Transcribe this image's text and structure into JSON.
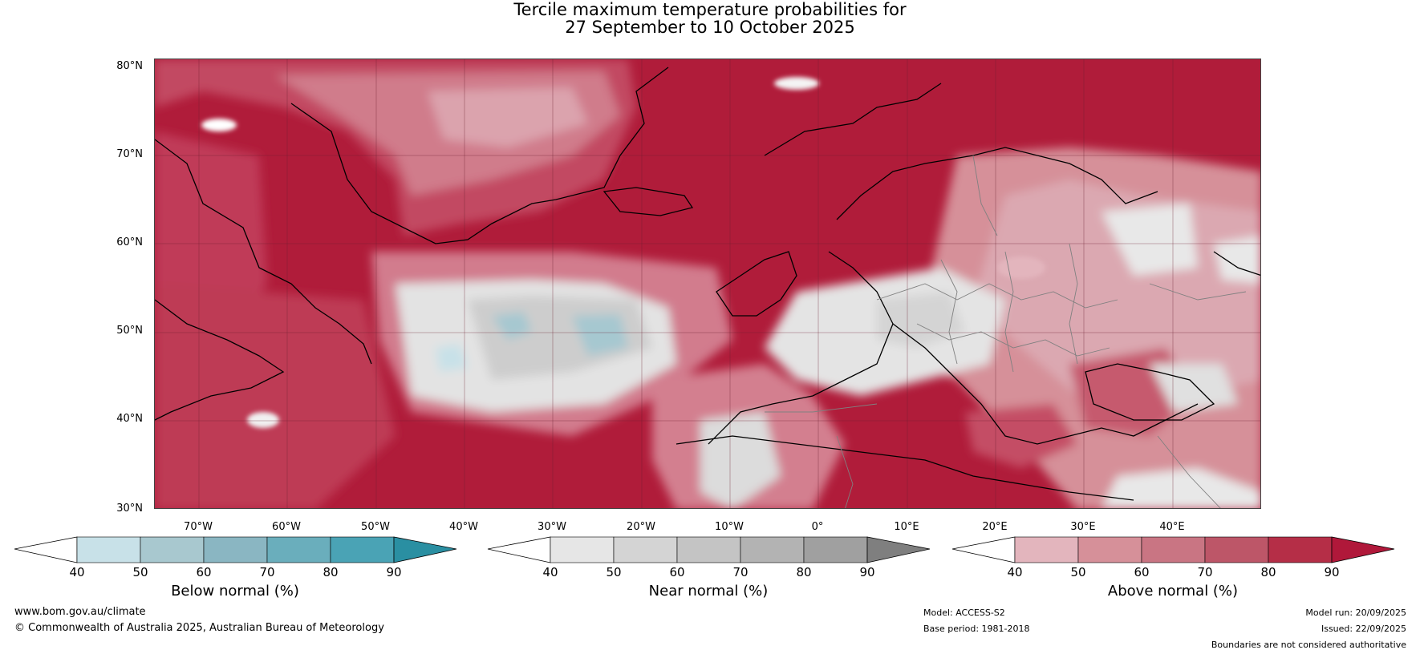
{
  "title": {
    "line1": "Tercile maximum temperature probabilities for",
    "line2": "27 September to 10 October 2025"
  },
  "map": {
    "lat_labels": [
      "80°N",
      "70°N",
      "60°N",
      "50°N",
      "40°N",
      "30°N"
    ],
    "lon_labels": [
      "70°W",
      "60°W",
      "50°W",
      "40°W",
      "30°W",
      "20°W",
      "10°W",
      "0°",
      "10°E",
      "20°E",
      "30°E",
      "40°E"
    ],
    "extent": {
      "lon_min": -75,
      "lon_max": 50,
      "lat_min": 30,
      "lat_max": 81
    },
    "colors": {
      "ocean_base": "#b01c3a",
      "land_pink": "#dba8b1",
      "coast": "#000000",
      "border": "#808080"
    }
  },
  "legends": [
    {
      "title": "Below normal (%)",
      "ticks": [
        "40",
        "50",
        "60",
        "70",
        "80",
        "90"
      ],
      "colors": [
        "#ffffff",
        "#c8e1e8",
        "#a8c8cf",
        "#8ab6c2",
        "#6aaebc",
        "#4aa3b5",
        "#2a8fa2"
      ]
    },
    {
      "title": "Near normal (%)",
      "ticks": [
        "40",
        "50",
        "60",
        "70",
        "80",
        "90"
      ],
      "colors": [
        "#ffffff",
        "#e6e6e6",
        "#d4d4d4",
        "#c4c4c4",
        "#b3b3b3",
        "#a0a0a0",
        "#7f7f7f"
      ]
    },
    {
      "title": "Above normal (%)",
      "ticks": [
        "40",
        "50",
        "60",
        "70",
        "80",
        "90"
      ],
      "colors": [
        "#ffffff",
        "#e3b5bd",
        "#d69099",
        "#c97583",
        "#bd5668",
        "#b52e47",
        "#b0183a"
      ]
    }
  ],
  "footer": {
    "website": "www.bom.gov.au/climate",
    "copyright": "© Commonwealth of Australia 2025, Australian Bureau of Meteorology",
    "model": "Model: ACCESS-S2",
    "base_period": "Base period: 1981-2018",
    "model_run": "Model run: 20/09/2025",
    "issued": "Issued: 22/09/2025",
    "disclaimer": "Boundaries are not considered authoritative"
  }
}
